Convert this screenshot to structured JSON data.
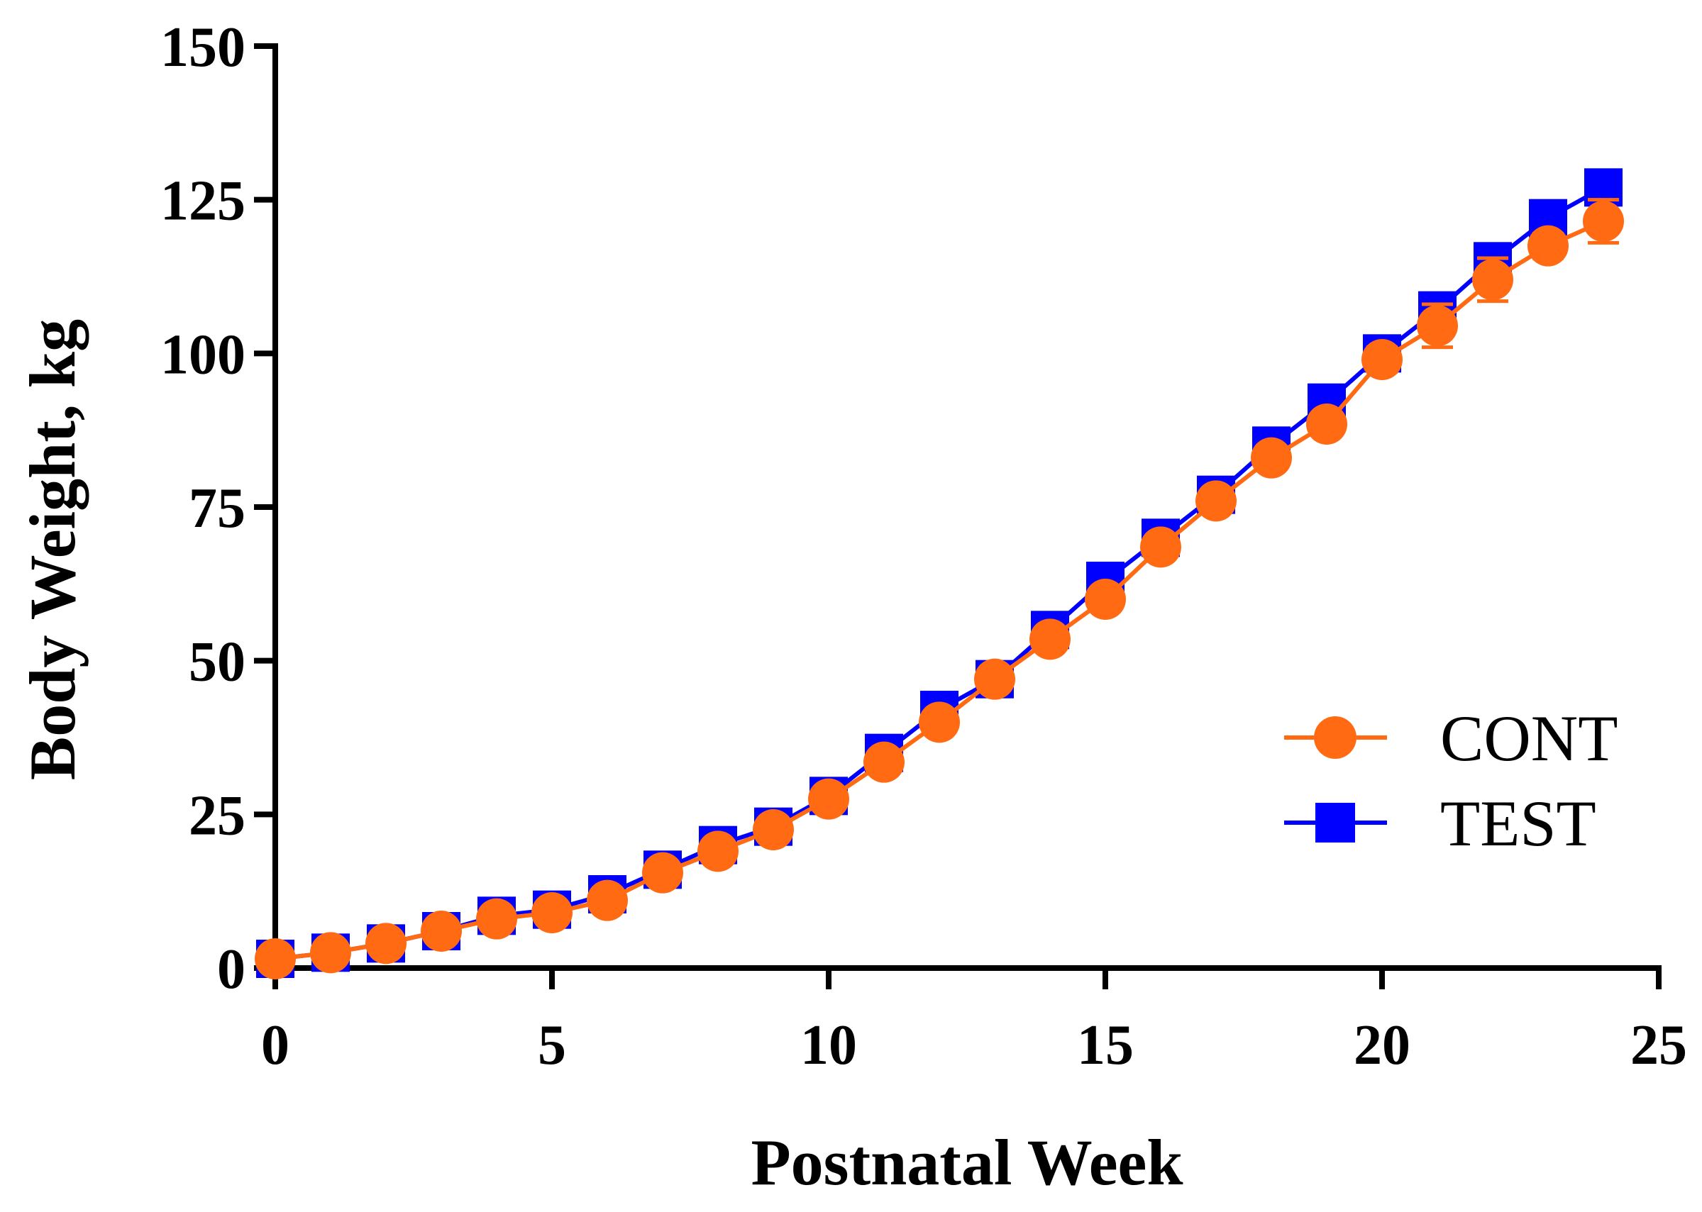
{
  "chart_data": {
    "type": "line",
    "title": "",
    "xlabel": "Postnatal Week",
    "ylabel": "Body Weight, kg",
    "xlim": [
      0,
      25
    ],
    "ylim": [
      0,
      150
    ],
    "xticks": [
      0,
      5,
      10,
      15,
      20,
      25
    ],
    "yticks": [
      0,
      25,
      50,
      75,
      100,
      125,
      150
    ],
    "grid": false,
    "legend_position": "bottom-right",
    "series": [
      {
        "name": "TEST",
        "color": "#0000ff",
        "marker": "square",
        "x": [
          0,
          1,
          2,
          3,
          4,
          5,
          6,
          7,
          8,
          9,
          10,
          11,
          12,
          13,
          14,
          15,
          16,
          17,
          18,
          19,
          20,
          21,
          22,
          23,
          24
        ],
        "values": [
          1.5,
          2.5,
          4,
          6,
          8.5,
          9.5,
          12,
          16,
          20,
          23,
          28,
          35,
          42,
          47,
          55,
          63,
          70,
          77,
          85,
          92,
          100,
          107,
          115,
          122,
          127
        ],
        "error": [
          0.3,
          0.3,
          0.3,
          0.4,
          0.5,
          0.5,
          0.6,
          0.7,
          0.8,
          0.8,
          1,
          1,
          1.2,
          1.2,
          1.3,
          1.4,
          1.5,
          1.5,
          1.5,
          1.6,
          1.8,
          2,
          2,
          2.2,
          2.5
        ]
      },
      {
        "name": "CONT",
        "color": "#ff6a13",
        "marker": "circle",
        "x": [
          0,
          1,
          2,
          3,
          4,
          5,
          6,
          7,
          8,
          9,
          10,
          11,
          12,
          13,
          14,
          15,
          16,
          17,
          18,
          19,
          20,
          21,
          22,
          23,
          24
        ],
        "values": [
          1.5,
          2.5,
          4,
          6,
          8,
          9,
          11,
          15.5,
          19,
          22.5,
          27.5,
          33.5,
          40,
          47,
          53.5,
          60,
          68.5,
          76,
          83,
          88.5,
          99,
          104.5,
          112,
          117.5,
          121.5
        ],
        "error": [
          0.3,
          0.3,
          0.3,
          0.4,
          0.5,
          0.5,
          0.6,
          0.7,
          0.8,
          0.8,
          1,
          1.2,
          1.2,
          1.3,
          1.4,
          1.5,
          1.5,
          1.6,
          1.7,
          1.8,
          2,
          3.5,
          3.5,
          2,
          3.5
        ]
      }
    ]
  }
}
